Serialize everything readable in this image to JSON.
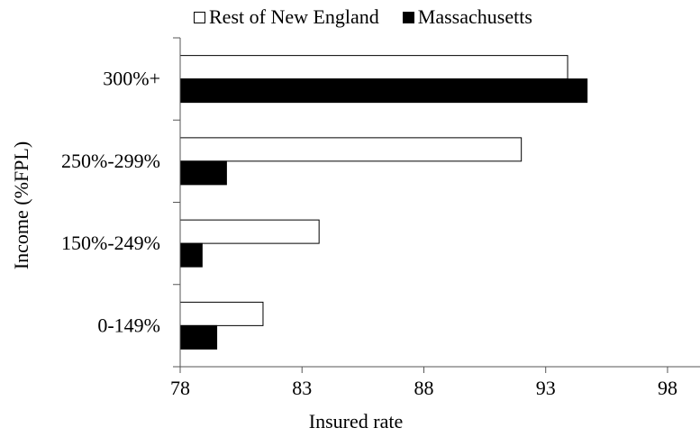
{
  "chart_data": {
    "type": "bar",
    "orientation": "horizontal",
    "categories": [
      "300%+",
      "250%-299%",
      "150%-249%",
      "0-149%"
    ],
    "series": [
      {
        "name": "Rest of New England",
        "color": "#ffffff",
        "values": [
          93.9,
          92.0,
          83.7,
          81.4
        ]
      },
      {
        "name": "Massachusetts",
        "color": "#000000",
        "values": [
          94.7,
          79.9,
          78.9,
          79.5
        ]
      }
    ],
    "xlabel": "Insured rate",
    "ylabel": "Income (%FPL)",
    "xlim": [
      78,
      99
    ],
    "xticks": [
      "78",
      "83",
      "88",
      "93",
      "98"
    ],
    "legend_position": "top",
    "grid": false
  }
}
